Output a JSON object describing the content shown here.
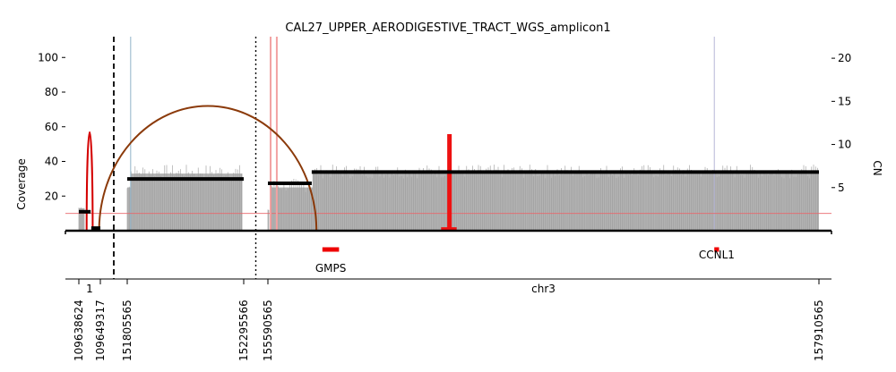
{
  "chart_data": {
    "type": "amplicon-coverage",
    "title": "CAL27_UPPER_AERODIGESTIVE_TRACT_WGS_amplicon1",
    "ylabel_left": "Coverage",
    "ylabel_right": "CN",
    "ylim_left": [
      0,
      112
    ],
    "ylim_right": [
      0,
      22.5
    ],
    "yticks_left": [
      20,
      40,
      60,
      80,
      100
    ],
    "yticks_right": [
      5,
      10,
      15,
      20
    ],
    "chromosome_labels": [
      {
        "label": "1",
        "segment": 0
      },
      {
        "label": "chr3",
        "segment": 2
      }
    ],
    "genomic_segments": [
      {
        "chrom": "chr1",
        "start": 109638624,
        "end": 109649317
      },
      {
        "chrom": "chr3",
        "start": 151805565,
        "end": 152295566
      },
      {
        "chrom": "chr3",
        "start": 155590565,
        "end": 157910565
      }
    ],
    "position_tick_labels": [
      "109638624",
      "109649317",
      "151805565",
      "152295566",
      "155590565",
      "157910565"
    ],
    "genes": [
      {
        "name": "GMPS",
        "segment": 2,
        "start": 155820000,
        "end": 155890000
      },
      {
        "name": "CCNL1",
        "segment": 2,
        "start": 157470000,
        "end": 157490000
      }
    ],
    "coverage_blocks": [
      {
        "segment": 0,
        "start": 109638624,
        "end": 109641500,
        "level": 13,
        "jitter": 1
      },
      {
        "segment": 1,
        "start": 151805565,
        "end": 151822000,
        "level": 25,
        "jitter": 2
      },
      {
        "segment": 1,
        "start": 151822000,
        "end": 152290000,
        "level": 33,
        "jitter": 4
      },
      {
        "segment": 2,
        "start": 155590565,
        "end": 155596000,
        "level": 12,
        "jitter": 1
      },
      {
        "segment": 2,
        "start": 155600000,
        "end": 155780000,
        "level": 25,
        "jitter": 4
      },
      {
        "segment": 2,
        "start": 155780000,
        "end": 157910565,
        "level": 33,
        "jitter": 4
      }
    ],
    "coverage_spikes": [
      {
        "segment": 1,
        "pos": 151820000,
        "value": 112,
        "color": "#8fb3c8"
      },
      {
        "segment": 2,
        "pos": 157470000,
        "value": 112,
        "color": "#b6b6d6"
      }
    ],
    "cn_segments": [
      {
        "segment": 0,
        "start": 109638624,
        "end": 109644500,
        "cn": 2.2
      },
      {
        "segment": 0,
        "start": 109644800,
        "end": 109649317,
        "cn": 0.3
      },
      {
        "segment": 1,
        "start": 151805565,
        "end": 152295566,
        "cn": 6.0
      },
      {
        "segment": 2,
        "start": 155590565,
        "end": 155775000,
        "cn": 5.5
      },
      {
        "segment": 2,
        "start": 155775000,
        "end": 157910565,
        "cn": 6.8
      },
      {
        "segment": 2,
        "start": 156320000,
        "end": 156385000,
        "cn": 0.2
      }
    ],
    "cn_baseline": 2.0,
    "breakpoint_lines": [
      {
        "segment": 2,
        "pos": 155602000,
        "cn": 22.5
      },
      {
        "segment": 2,
        "pos": 155628000,
        "cn": 22.5
      }
    ],
    "breakpoint_bars": [
      {
        "segment": 2,
        "pos": 156355000,
        "cn": 11.2
      }
    ],
    "arcs": [
      {
        "seg_a": 0,
        "pos_a": 109642500,
        "seg_b": 0,
        "pos_b": 109645500,
        "height": 57,
        "color": "#d40000"
      },
      {
        "seg_a": 0,
        "pos_a": 109648700,
        "seg_b": 2,
        "pos_b": 155795000,
        "height": 72,
        "color": "#8b3a0a"
      }
    ],
    "dividers": [
      {
        "after_segment": 0,
        "style": "dashed"
      },
      {
        "after_segment": 1,
        "style": "dotted"
      }
    ],
    "colors": {
      "coverage": "#b4b4b4",
      "coverage_edge": "#999999",
      "cn": "#000000",
      "baseline": "#e8666b",
      "gene": "#ee0000",
      "breakpoint_light": "#f2a2a2",
      "breakpoint_dark": "#ee1111"
    }
  }
}
